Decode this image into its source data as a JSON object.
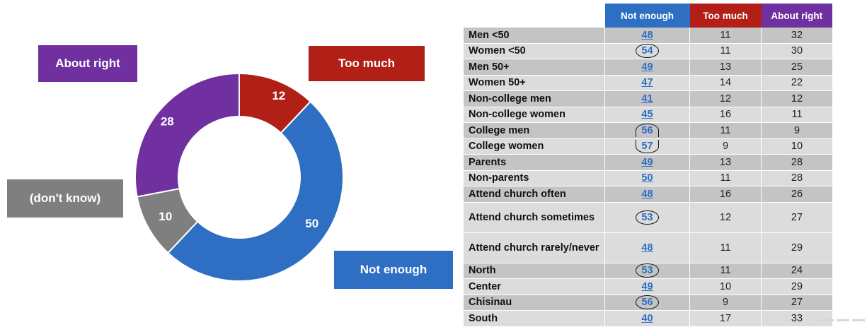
{
  "colors": {
    "not_enough": "#2e6fc4",
    "too_much": "#b21f17",
    "about_right": "#7030a0",
    "dont_know": "#7f7f7f"
  },
  "chart_data": [
    {
      "type": "pie",
      "categories": [
        "Too much",
        "Not enough",
        "(don't know)",
        "About right"
      ],
      "values": [
        12,
        50,
        10,
        28
      ]
    },
    {
      "type": "table",
      "columns": [
        "Not enough",
        "Too much",
        "About right"
      ],
      "rows": [
        {
          "label": "Men <50",
          "values": [
            48,
            11,
            32
          ]
        },
        {
          "label": "Women <50",
          "values": [
            54,
            11,
            30
          ]
        },
        {
          "label": "Men 50+",
          "values": [
            49,
            13,
            25
          ]
        },
        {
          "label": "Women 50+",
          "values": [
            47,
            14,
            22
          ]
        },
        {
          "label": "Non-college men",
          "values": [
            41,
            12,
            12
          ]
        },
        {
          "label": "Non-college women",
          "values": [
            45,
            16,
            11
          ]
        },
        {
          "label": "College men",
          "values": [
            56,
            11,
            9
          ]
        },
        {
          "label": "College women",
          "values": [
            57,
            9,
            10
          ]
        },
        {
          "label": "Parents",
          "values": [
            49,
            13,
            28
          ]
        },
        {
          "label": "Non-parents",
          "values": [
            50,
            11,
            28
          ]
        },
        {
          "label": "Attend church often",
          "values": [
            48,
            16,
            26
          ]
        },
        {
          "label": "Attend church sometimes",
          "values": [
            53,
            12,
            27
          ]
        },
        {
          "label": "Attend church rarely/never",
          "values": [
            48,
            11,
            29
          ]
        },
        {
          "label": "North",
          "values": [
            53,
            11,
            24
          ]
        },
        {
          "label": "Center",
          "values": [
            49,
            10,
            29
          ]
        },
        {
          "label": "Chisinau",
          "values": [
            56,
            9,
            27
          ]
        },
        {
          "label": "South",
          "values": [
            40,
            17,
            33
          ]
        }
      ]
    }
  ]
}
